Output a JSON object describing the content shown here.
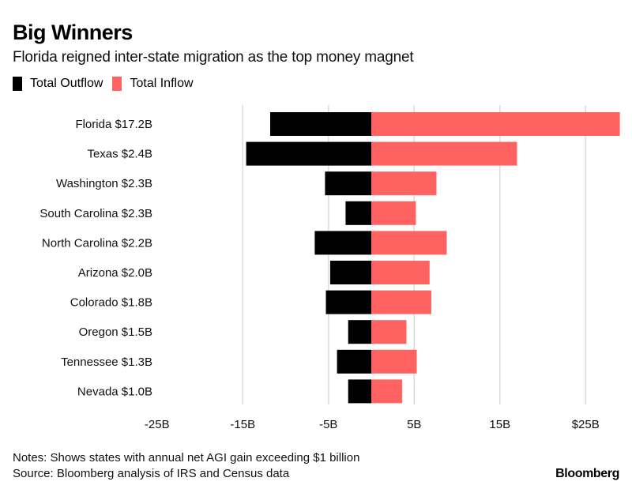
{
  "header": {
    "title": "Big Winners",
    "subtitle": "Florida reigned inter-state migration as the top money magnet"
  },
  "legend": [
    {
      "label": "Total Outflow",
      "color": "#000000"
    },
    {
      "label": "Total Inflow",
      "color": "#ff6361"
    }
  ],
  "footer": {
    "notes": "Notes: Shows states with annual net AGI gain exceeding $1 billion",
    "source": "Source: Bloomberg analysis of IRS and Census data",
    "brand": "Bloomberg"
  },
  "chart_data": {
    "type": "bar",
    "orientation": "horizontal",
    "stacked": "diverging",
    "title": "Big Winners",
    "subtitle": "Florida reigned inter-state migration as the top money magnet",
    "xlabel": "",
    "ylabel": "",
    "units": "billions USD",
    "xlim": [
      -25,
      29
    ],
    "grid": true,
    "legend_position": "top-left",
    "xticks": [
      -25,
      -15,
      -5,
      5,
      15,
      25
    ],
    "xtick_labels": [
      "-25B",
      "-15B",
      "-5B",
      "5B",
      "15B",
      "$25B"
    ],
    "categories": [
      "Florida $17.2B",
      "Texas $2.4B",
      "Washington $2.3B",
      "South Carolina $2.3B",
      "North Carolina $2.2B",
      "Arizona $2.0B",
      "Colorado $1.8B",
      "Oregon $1.5B",
      "Tennessee $1.3B",
      "Nevada $1.0B"
    ],
    "series": [
      {
        "name": "Total Outflow",
        "color": "#000000",
        "values": [
          -11.8,
          -14.6,
          -5.4,
          -3.0,
          -6.6,
          -4.8,
          -5.3,
          -2.7,
          -4.0,
          -2.7
        ]
      },
      {
        "name": "Total Inflow",
        "color": "#ff6361",
        "values": [
          29.0,
          17.0,
          7.6,
          5.2,
          8.8,
          6.8,
          7.0,
          4.1,
          5.3,
          3.6
        ]
      }
    ]
  }
}
